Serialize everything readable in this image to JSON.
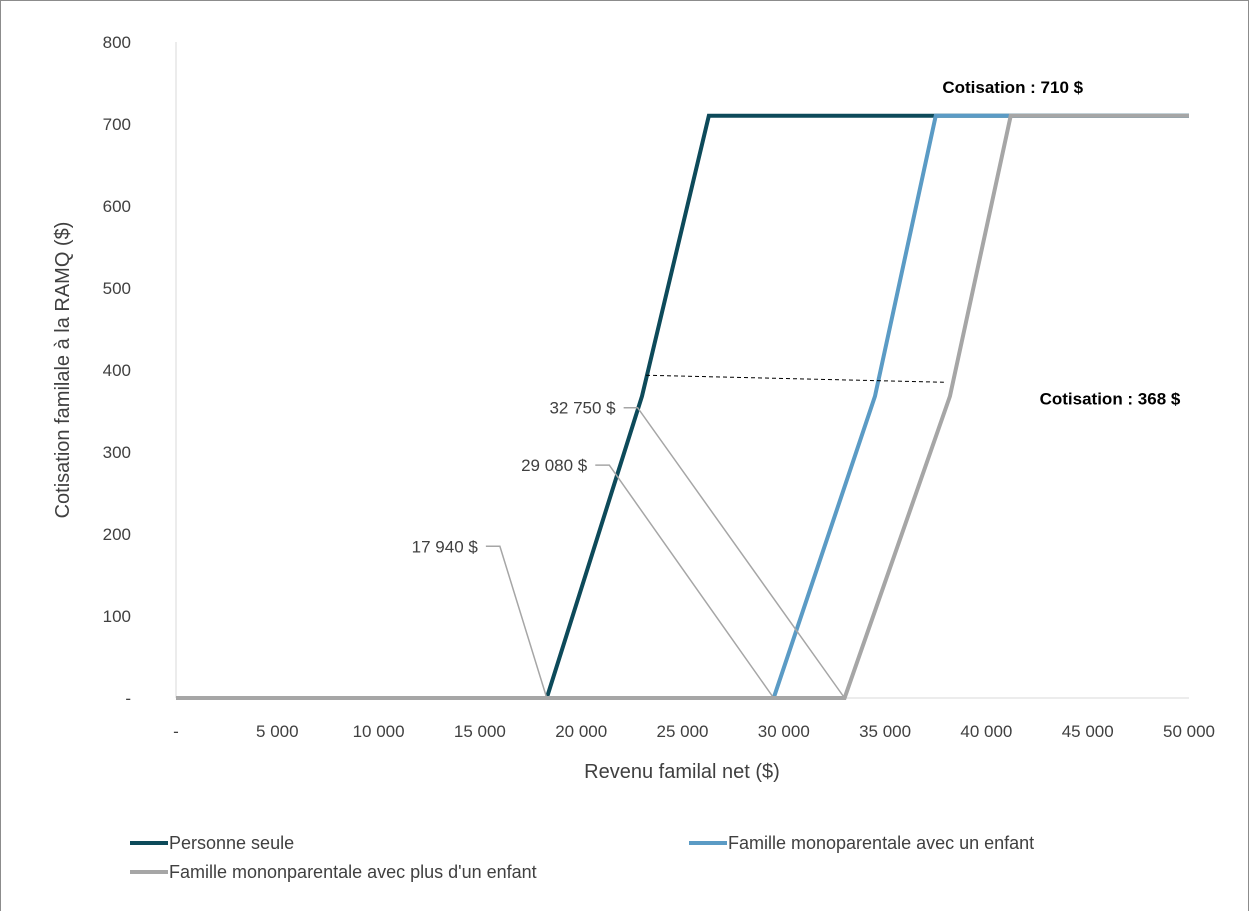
{
  "chart_data": {
    "type": "line",
    "xlabel": "Revenu familal net ($)",
    "ylabel": "Cotisation familale à la RAMQ ($)",
    "xlim": [
      0,
      50000
    ],
    "ylim": [
      0,
      800
    ],
    "x_ticks": [
      {
        "value": 0,
        "label": "-"
      },
      {
        "value": 5000,
        "label": "5 000"
      },
      {
        "value": 10000,
        "label": "10 000"
      },
      {
        "value": 15000,
        "label": "15 000"
      },
      {
        "value": 20000,
        "label": "20 000"
      },
      {
        "value": 25000,
        "label": "25 000"
      },
      {
        "value": 30000,
        "label": "30 000"
      },
      {
        "value": 35000,
        "label": "35 000"
      },
      {
        "value": 40000,
        "label": "40 000"
      },
      {
        "value": 45000,
        "label": "45 000"
      },
      {
        "value": 50000,
        "label": "50 000"
      }
    ],
    "y_ticks": [
      {
        "value": 0,
        "label": "-"
      },
      {
        "value": 100,
        "label": "100"
      },
      {
        "value": 200,
        "label": "200"
      },
      {
        "value": 300,
        "label": "300"
      },
      {
        "value": 400,
        "label": "400"
      },
      {
        "value": 500,
        "label": "500"
      },
      {
        "value": 600,
        "label": "600"
      },
      {
        "value": 700,
        "label": "700"
      },
      {
        "value": 800,
        "label": "800"
      }
    ],
    "grid": false,
    "legend_position": "bottom",
    "series": [
      {
        "name": "Personne seule",
        "color": "#0d4a5a",
        "points": [
          [
            0,
            0
          ],
          [
            18300,
            0
          ],
          [
            23000,
            368
          ],
          [
            26300,
            710
          ],
          [
            50000,
            710
          ]
        ]
      },
      {
        "name": "Famille monoparentale avec un enfant",
        "color": "#5b9bc5",
        "points": [
          [
            0,
            0
          ],
          [
            29500,
            0
          ],
          [
            34500,
            368
          ],
          [
            37500,
            710
          ],
          [
            50000,
            710
          ]
        ]
      },
      {
        "name": "Famille mononparentale avec plus d'un enfant",
        "color": "#a6a6a6",
        "points": [
          [
            0,
            0
          ],
          [
            33000,
            0
          ],
          [
            38200,
            368
          ],
          [
            41200,
            710
          ],
          [
            50000,
            710
          ]
        ]
      }
    ],
    "annotations": [
      {
        "text": "17 940 $",
        "x": 18300,
        "y": 0,
        "label_at": [
          14900,
          185
        ]
      },
      {
        "text": "29 080 $",
        "x": 29500,
        "y": 0,
        "label_at": [
          20300,
          284
        ]
      },
      {
        "text": "32 750 $",
        "x": 33000,
        "y": 0,
        "label_at": [
          21700,
          354
        ]
      },
      {
        "text": "Cotisation : 710 $",
        "bold": true,
        "label_at": [
          41300,
          738
        ]
      },
      {
        "text": "Cotisation : 368 $",
        "bold": true,
        "label_at": [
          46100,
          358
        ]
      }
    ],
    "reference_line": {
      "y": 368,
      "x_from": 23200,
      "x_to": 37900,
      "style": "dashed"
    }
  }
}
